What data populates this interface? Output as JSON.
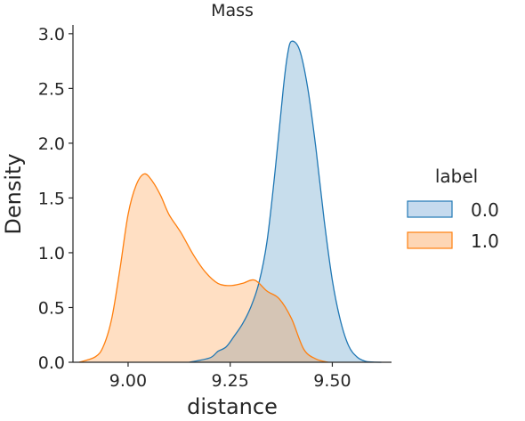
{
  "chart_data": {
    "type": "area",
    "title": "Mass",
    "xlabel": "distance",
    "ylabel": "Density",
    "xlim": [
      8.865,
      9.645
    ],
    "ylim": [
      0,
      3.08
    ],
    "xticks": [
      9.0,
      9.25,
      9.5
    ],
    "xtick_labels": [
      "9.00",
      "9.25",
      "9.50"
    ],
    "yticks": [
      0.0,
      0.5,
      1.0,
      1.5,
      2.0,
      2.5,
      3.0
    ],
    "ytick_labels": [
      "0.0",
      "0.5",
      "1.0",
      "1.5",
      "2.0",
      "2.5",
      "3.0"
    ],
    "grid": false,
    "legend": {
      "title": "label",
      "placement": "right"
    },
    "series": [
      {
        "name": "0.0",
        "line_color": "#1f77b4",
        "fill_color": "#c5daee",
        "x": [
          9.15,
          9.2,
          9.22,
          9.24,
          9.26,
          9.28,
          9.3,
          9.32,
          9.34,
          9.36,
          9.38,
          9.39,
          9.4,
          9.42,
          9.44,
          9.46,
          9.48,
          9.5,
          9.52,
          9.54,
          9.56,
          9.58,
          9.6,
          9.62
        ],
        "y": [
          0.0,
          0.04,
          0.1,
          0.14,
          0.24,
          0.35,
          0.5,
          0.72,
          1.1,
          1.75,
          2.5,
          2.8,
          2.93,
          2.85,
          2.5,
          1.95,
          1.3,
          0.75,
          0.38,
          0.15,
          0.05,
          0.01,
          0.002,
          0.0
        ]
      },
      {
        "name": "1.0",
        "line_color": "#ff7f0e",
        "fill_color": "#fdd6b5",
        "x": [
          8.88,
          8.92,
          8.94,
          8.96,
          8.98,
          9.0,
          9.02,
          9.04,
          9.06,
          9.08,
          9.1,
          9.13,
          9.16,
          9.19,
          9.22,
          9.25,
          9.28,
          9.31,
          9.34,
          9.37,
          9.4,
          9.43,
          9.46,
          9.49
        ],
        "y": [
          0.0,
          0.05,
          0.15,
          0.4,
          0.85,
          1.35,
          1.62,
          1.72,
          1.65,
          1.52,
          1.35,
          1.18,
          0.98,
          0.82,
          0.72,
          0.7,
          0.72,
          0.75,
          0.65,
          0.58,
          0.4,
          0.12,
          0.03,
          0.0
        ]
      }
    ]
  }
}
